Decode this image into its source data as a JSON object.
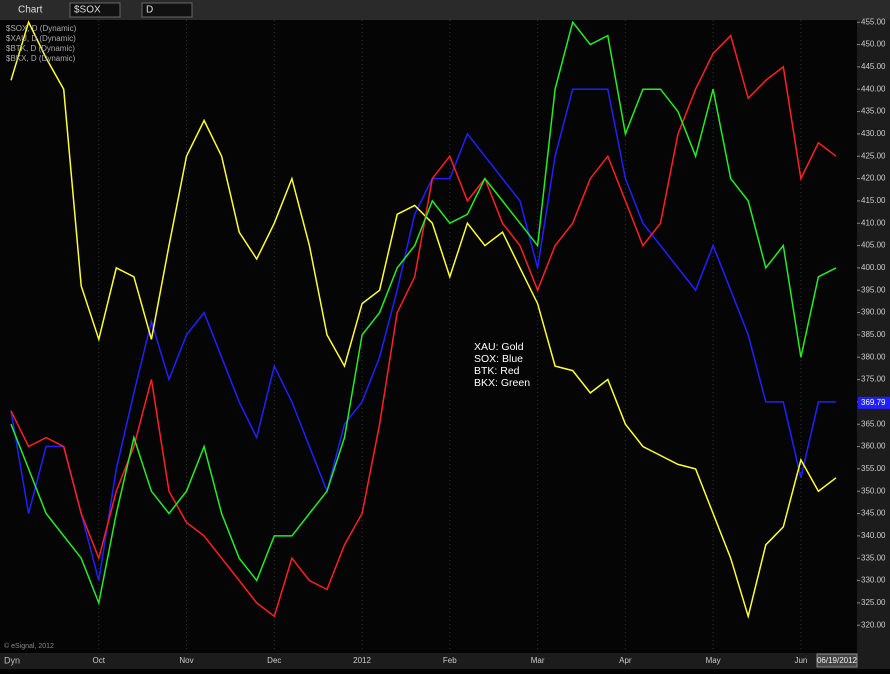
{
  "toolbar": {
    "title": "Chart",
    "symbol": "$SOX",
    "interval": "D"
  },
  "chart_data": {
    "type": "line",
    "categories": [
      null,
      null,
      null,
      null,
      null,
      "Oct",
      null,
      null,
      null,
      null,
      "Nov",
      null,
      null,
      null,
      null,
      "Dec",
      null,
      null,
      null,
      null,
      "2012",
      null,
      null,
      null,
      null,
      "Feb",
      null,
      null,
      null,
      null,
      "Mar",
      null,
      null,
      null,
      null,
      "Apr",
      null,
      null,
      null,
      null,
      "May",
      null,
      null,
      null,
      null,
      "Jun",
      null,
      "06/19/2012"
    ],
    "series": [
      {
        "name": "$SOX, D (Dynamic)",
        "color": "#2020ff",
        "values": [
          368,
          345,
          360,
          360,
          345,
          330,
          355,
          372,
          388,
          375,
          385,
          390,
          380,
          370,
          362,
          378,
          370,
          360,
          350,
          365,
          370,
          380,
          395,
          412,
          420,
          420,
          430,
          425,
          420,
          415,
          400,
          425,
          440,
          440,
          440,
          420,
          410,
          405,
          400,
          395,
          405,
          395,
          385,
          370,
          370,
          353,
          370,
          370
        ]
      },
      {
        "name": "$XAU, D (Dynamic)",
        "color": "#ffff30",
        "values": [
          442,
          455,
          447,
          440,
          396,
          384,
          400,
          398,
          384,
          405,
          425,
          433,
          425,
          408,
          402,
          410,
          420,
          405,
          385,
          378,
          392,
          395,
          412,
          414,
          410,
          398,
          410,
          405,
          408,
          400,
          392,
          378,
          377,
          372,
          375,
          365,
          360,
          358,
          356,
          355,
          345,
          335,
          322,
          338,
          342,
          357,
          350,
          353
        ]
      },
      {
        "name": "$BTK, D (Dynamic)",
        "color": "#ff2020",
        "values": [
          368,
          360,
          362,
          360,
          345,
          335,
          350,
          360,
          375,
          350,
          343,
          340,
          335,
          330,
          325,
          322,
          335,
          330,
          328,
          338,
          345,
          365,
          390,
          398,
          420,
          425,
          415,
          420,
          410,
          405,
          395,
          405,
          410,
          420,
          425,
          415,
          405,
          410,
          430,
          440,
          448,
          452,
          438,
          442,
          445,
          420,
          428,
          425
        ]
      },
      {
        "name": "$BKX, D (Dynamic)",
        "color": "#22ee22",
        "values": [
          365,
          355,
          345,
          340,
          335,
          325,
          345,
          362,
          350,
          345,
          350,
          360,
          345,
          335,
          330,
          340,
          340,
          345,
          350,
          362,
          385,
          390,
          400,
          405,
          415,
          410,
          412,
          420,
          415,
          410,
          405,
          440,
          455,
          450,
          452,
          430,
          440,
          440,
          435,
          425,
          440,
          420,
          415,
          400,
          405,
          380,
          398,
          400
        ]
      }
    ],
    "annotations": [
      "XAU:  Gold",
      "SOX:  Blue",
      "BTK:  Red",
      "BKX:  Green"
    ],
    "last_value": 369.79,
    "last_value_color": "#2020ff",
    "ylim": [
      314,
      455.5
    ],
    "yticks": [
      {
        "value": 320,
        "label": "320.00"
      },
      {
        "value": 325,
        "label": "325.00"
      },
      {
        "value": 330,
        "label": "330.00"
      },
      {
        "value": 335,
        "label": "335.00"
      },
      {
        "value": 340,
        "label": "340.00"
      },
      {
        "value": 345,
        "label": "345.00"
      },
      {
        "value": 350,
        "label": "350.00"
      },
      {
        "value": 355,
        "label": "355.00"
      },
      {
        "value": 360,
        "label": "360.00"
      },
      {
        "value": 365,
        "label": "365.00"
      },
      {
        "value": 370,
        "label": "370.00"
      },
      {
        "value": 375,
        "label": "375.00"
      },
      {
        "value": 380,
        "label": "380.00"
      },
      {
        "value": 385,
        "label": "385.00"
      },
      {
        "value": 390,
        "label": "390.00"
      },
      {
        "value": 395,
        "label": "395.00"
      },
      {
        "value": 400,
        "label": "400.00"
      },
      {
        "value": 405,
        "label": "405.00"
      },
      {
        "value": 410,
        "label": "410.00"
      },
      {
        "value": 415,
        "label": "415.00"
      },
      {
        "value": 420,
        "label": "420.00"
      },
      {
        "value": 425,
        "label": "425.00"
      },
      {
        "value": 430,
        "label": "430.00"
      },
      {
        "value": 435,
        "label": "435.00"
      },
      {
        "value": 440,
        "label": "440.00"
      },
      {
        "value": 445,
        "label": "445.00"
      },
      {
        "value": 450,
        "label": "450.00"
      },
      {
        "value": 455,
        "label": "455.00"
      }
    ],
    "grid": true,
    "footer": {
      "copyright": "© eSignal, 2012",
      "mode": "Dyn"
    }
  }
}
